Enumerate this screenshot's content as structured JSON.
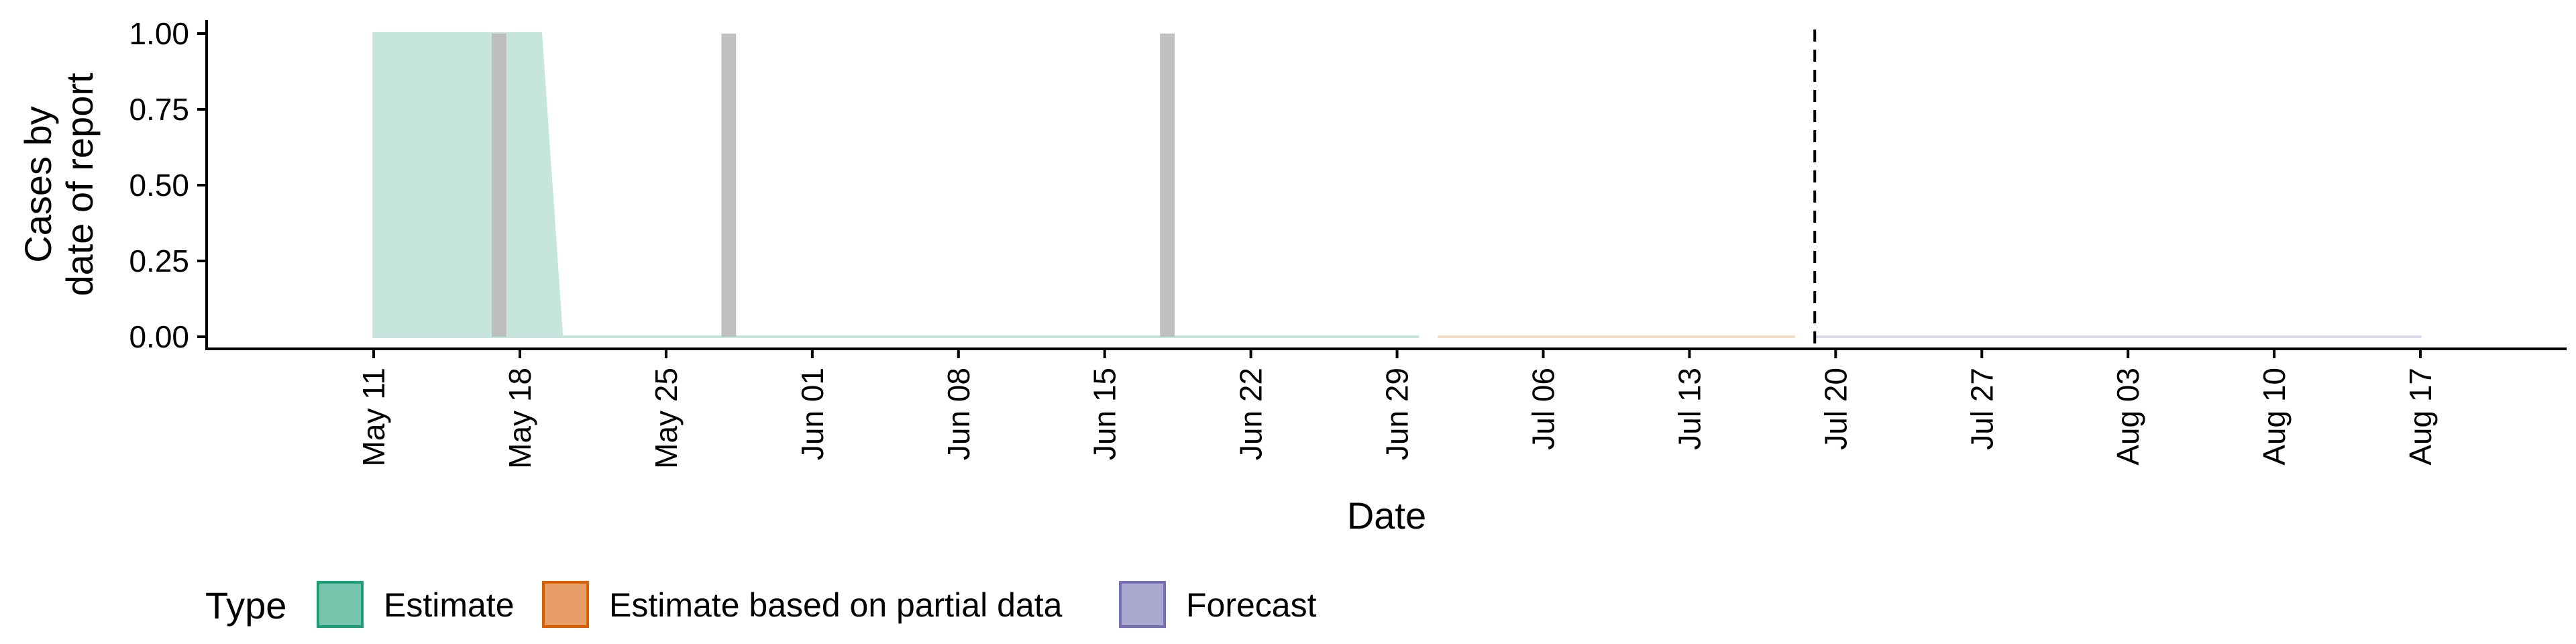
{
  "chart_data": {
    "type": "area",
    "ylabel_lines": [
      "Cases by",
      "date of report"
    ],
    "xlabel": "Date",
    "ylim": [
      0,
      1
    ],
    "y_ticks": [
      0,
      0.25,
      0.5,
      0.75,
      1
    ],
    "y_tick_labels": [
      "0.00",
      "0.25",
      "0.50",
      "0.75",
      "1.00"
    ],
    "xlim": [
      "2020-05-03",
      "2020-08-24"
    ],
    "x_ticks": [
      "2020-05-11",
      "2020-05-18",
      "2020-05-25",
      "2020-06-01",
      "2020-06-08",
      "2020-06-15",
      "2020-06-22",
      "2020-06-29",
      "2020-07-06",
      "2020-07-13",
      "2020-07-20",
      "2020-07-27",
      "2020-08-03",
      "2020-08-10",
      "2020-08-17"
    ],
    "x_tick_labels": [
      "May 11",
      "May 18",
      "May 25",
      "Jun 01",
      "Jun 08",
      "Jun 15",
      "Jun 22",
      "Jun 29",
      "Jul 06",
      "Jul 13",
      "Jul 20",
      "Jul 27",
      "Aug 03",
      "Aug 10",
      "Aug 17"
    ],
    "series": [
      {
        "name": "Estimate",
        "color": "#1B9E77",
        "fill": "#c6e6dd",
        "x": [
          "2020-05-11",
          "2020-05-19",
          "2020-05-20",
          "2020-06-30"
        ],
        "lower": [
          0,
          0,
          0,
          0
        ],
        "upper": [
          1,
          1,
          0,
          0
        ]
      },
      {
        "name": "Estimate based on partial data",
        "color": "#D95F02",
        "fill": "#f3dcc6",
        "x": [
          "2020-07-01",
          "2020-07-18"
        ],
        "lower": [
          0,
          0
        ],
        "upper": [
          0,
          0
        ]
      },
      {
        "name": "Forecast",
        "color": "#7570B3",
        "fill": "#dcdcec",
        "x": [
          "2020-07-19",
          "2020-08-17"
        ],
        "lower": [
          0,
          0
        ],
        "upper": [
          0,
          0
        ]
      }
    ],
    "reported_cases": {
      "color": "#bdbdbd",
      "x": [
        "2020-05-17",
        "2020-05-28",
        "2020-06-18"
      ],
      "values": [
        1,
        1,
        1
      ]
    },
    "vline": {
      "x": "2020-07-19",
      "style": "dashed"
    },
    "legend": {
      "title": "Type",
      "position": "bottom",
      "items": [
        "Estimate",
        "Estimate based on partial data",
        "Forecast"
      ]
    },
    "grid": false
  }
}
